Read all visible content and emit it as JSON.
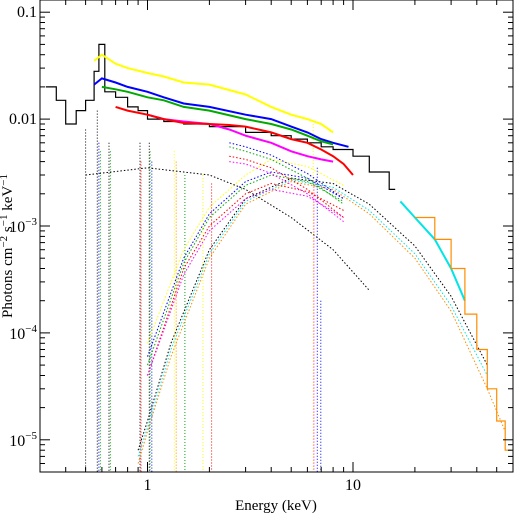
{
  "chart_data": {
    "type": "line",
    "xlabel": "Energy (keV)",
    "ylabel": "Photons cm−2 s−1 keV−1",
    "xscale": "log",
    "yscale": "log",
    "xlim": [
      0.3,
      60
    ],
    "ylim": [
      5e-06,
      0.13
    ],
    "grid": false,
    "x_ticks": [
      {
        "value": 1,
        "label": "1"
      },
      {
        "value": 10,
        "label": "10"
      }
    ],
    "y_ticks": [
      {
        "value": 0.1,
        "label": "0.1"
      },
      {
        "value": 0.01,
        "label": "0.01"
      },
      {
        "value": 0.001,
        "base": "10",
        "exp": "−3"
      },
      {
        "value": 0.0001,
        "base": "10",
        "exp": "−4"
      },
      {
        "value": 1e-05,
        "base": "10",
        "exp": "−5"
      }
    ],
    "series": [
      {
        "color": "#000000",
        "style": "histogram",
        "x": [
          0.32,
          0.36,
          0.4,
          0.45,
          0.5,
          0.55,
          0.58,
          0.62,
          0.7,
          0.8,
          0.9,
          1.0,
          1.2,
          1.5,
          2.0,
          3.0,
          4.0,
          5.0,
          6.0,
          7.0,
          8.0,
          10.0,
          12.0,
          15.0
        ],
        "y": [
          0.02,
          0.015,
          0.009,
          0.012,
          0.015,
          0.028,
          0.05,
          0.018,
          0.016,
          0.013,
          0.012,
          0.01,
          0.0095,
          0.009,
          0.0085,
          0.0075,
          0.007,
          0.0065,
          0.006,
          0.0055,
          0.0052,
          0.0045,
          0.0032,
          0.0022
        ]
      },
      {
        "color": "#ffff00",
        "style": "line",
        "x": [
          0.55,
          0.6,
          0.7,
          0.8,
          1.0,
          1.2,
          1.5,
          2.0,
          3.0,
          4.0,
          5.0,
          6.0,
          7.0,
          8.0
        ],
        "y": [
          0.035,
          0.04,
          0.033,
          0.03,
          0.027,
          0.025,
          0.022,
          0.021,
          0.017,
          0.013,
          0.011,
          0.01,
          0.009,
          0.0075
        ]
      },
      {
        "color": "#0000ff",
        "style": "line",
        "x": [
          0.55,
          0.6,
          0.7,
          0.8,
          1.0,
          1.2,
          1.5,
          2.0,
          3.0,
          4.0,
          5.0,
          6.0,
          7.0,
          8.0,
          9.5
        ],
        "y": [
          0.021,
          0.024,
          0.022,
          0.02,
          0.018,
          0.016,
          0.014,
          0.013,
          0.011,
          0.01,
          0.0085,
          0.0075,
          0.0065,
          0.006,
          0.0055
        ]
      },
      {
        "color": "#00aa00",
        "style": "line",
        "x": [
          0.6,
          0.7,
          0.8,
          1.0,
          1.2,
          1.5,
          2.0,
          3.0,
          4.0,
          5.0,
          6.0,
          7.0,
          8.0
        ],
        "y": [
          0.02,
          0.019,
          0.018,
          0.016,
          0.015,
          0.013,
          0.012,
          0.01,
          0.009,
          0.008,
          0.007,
          0.0062,
          0.0058
        ]
      },
      {
        "color": "#ff00ff",
        "style": "line",
        "x": [
          1.0,
          1.2,
          1.5,
          2.0,
          2.5,
          3.0,
          4.0,
          5.0,
          6.0,
          7.0,
          8.0
        ],
        "y": [
          0.011,
          0.01,
          0.0095,
          0.009,
          0.008,
          0.007,
          0.006,
          0.005,
          0.0045,
          0.0042,
          0.004
        ]
      },
      {
        "color": "#ff0000",
        "style": "line",
        "x": [
          0.7,
          0.8,
          1.0,
          1.2,
          1.5,
          2.0,
          2.5,
          3.0,
          4.0,
          5.0,
          6.0,
          7.0,
          8.0,
          9.0,
          10.0
        ],
        "y": [
          0.013,
          0.012,
          0.011,
          0.01,
          0.0092,
          0.009,
          0.0088,
          0.0085,
          0.0075,
          0.0065,
          0.006,
          0.0052,
          0.0045,
          0.0038,
          0.003
        ]
      },
      {
        "color": "#00e5e5",
        "style": "line",
        "x": [
          17,
          20,
          25,
          30,
          35
        ],
        "y": [
          0.0017,
          0.0012,
          0.00075,
          0.0004,
          0.0002
        ]
      },
      {
        "color": "#ff8c00",
        "style": "histogram",
        "x": [
          20,
          25,
          30,
          35,
          40,
          45,
          50,
          55
        ],
        "y": [
          0.0012,
          0.00075,
          0.0004,
          0.00015,
          7e-05,
          3e-05,
          1.5e-05,
          8e-06
        ]
      }
    ],
    "model_components": [
      {
        "color": "#000000",
        "x": [
          0.9,
          1.0,
          1.3,
          2.0,
          3.0,
          5.0,
          8.0,
          12.0,
          20.0,
          30.0,
          45.0
        ],
        "y": [
          8e-06,
          1.5e-05,
          8e-05,
          0.0006,
          0.0018,
          0.0028,
          0.0025,
          0.0016,
          0.00065,
          0.00022,
          5e-05
        ]
      },
      {
        "color": "#ff8c00",
        "x": [
          0.9,
          1.0,
          1.3,
          2.0,
          3.0,
          5.0,
          8.0,
          12.0,
          20.0,
          30.0,
          45.0,
          55.0
        ],
        "y": [
          6e-06,
          1.2e-05,
          6e-05,
          0.0005,
          0.0016,
          0.0026,
          0.0022,
          0.0013,
          0.0005,
          0.00016,
          3e-05,
          1.2e-05
        ]
      },
      {
        "color": "#00e5e5",
        "x": [
          0.9,
          1.0,
          1.3,
          2.0,
          3.0,
          5.0,
          8.0,
          12.0,
          20.0,
          30.0,
          45.0
        ],
        "y": [
          7e-06,
          1.3e-05,
          7e-05,
          0.00055,
          0.0017,
          0.0027,
          0.0023,
          0.0014,
          0.00055,
          0.00018,
          4e-05
        ]
      },
      {
        "color": "#ffff00",
        "x": [
          1.0,
          1.5,
          2.0,
          3.0,
          4.0,
          6.0,
          9.0
        ],
        "y": [
          8e-05,
          0.0006,
          0.0015,
          0.003,
          0.0042,
          0.0036,
          0.0024
        ]
      },
      {
        "color": "#0000ff",
        "x": [
          1.0,
          1.5,
          2.0,
          3.0,
          4.0,
          6.0,
          9.0
        ],
        "y": [
          6e-05,
          0.0005,
          0.0013,
          0.0026,
          0.0032,
          0.0028,
          0.0018
        ]
      },
      {
        "color": "#00aa00",
        "x": [
          1.0,
          1.5,
          2.0,
          3.0,
          4.0,
          6.0,
          9.0
        ],
        "y": [
          5e-05,
          0.00045,
          0.0012,
          0.0024,
          0.003,
          0.0026,
          0.0017
        ]
      },
      {
        "color": "#ff0000",
        "x": [
          1.0,
          1.5,
          2.0,
          3.0,
          4.0,
          6.0,
          9.0
        ],
        "y": [
          4e-05,
          0.0004,
          0.001,
          0.002,
          0.0025,
          0.0021,
          0.0014
        ]
      },
      {
        "color": "#ff00ff",
        "x": [
          1.0,
          1.5,
          2.0,
          3.0,
          4.0,
          6.0,
          9.0
        ],
        "y": [
          4e-05,
          0.00035,
          0.0009,
          0.0018,
          0.0022,
          0.0019,
          0.0012
        ]
      },
      {
        "color": "#000000",
        "x": [
          0.5,
          1.0,
          2.0,
          3.0,
          5.0,
          8.0,
          12.0
        ],
        "y": [
          0.003,
          0.0035,
          0.003,
          0.0022,
          0.0012,
          0.0006,
          0.00025
        ]
      },
      {
        "color": "#ff0000",
        "x": [
          2.5,
          3.0,
          4.0,
          6.0,
          9.0
        ],
        "y": [
          0.0045,
          0.0042,
          0.0035,
          0.0022,
          0.0012
        ]
      },
      {
        "color": "#ff00ff",
        "x": [
          2.5,
          3.0,
          4.0,
          6.0,
          9.0
        ],
        "y": [
          0.004,
          0.0038,
          0.0031,
          0.002,
          0.0011
        ]
      },
      {
        "color": "#00aa00",
        "x": [
          2.5,
          3.0,
          4.0,
          6.0,
          9.0
        ],
        "y": [
          0.0055,
          0.005,
          0.0042,
          0.0028,
          0.0016
        ]
      },
      {
        "color": "#0000ff",
        "x": [
          2.5,
          3.0,
          4.0,
          6.0,
          9.0
        ],
        "y": [
          0.006,
          0.0055,
          0.0046,
          0.0031,
          0.0018
        ]
      }
    ],
    "emission_lines": [
      {
        "energy": 0.5,
        "peak": 0.008,
        "color": "#000000"
      },
      {
        "energy": 0.57,
        "peak": 0.012,
        "color": "#000000"
      },
      {
        "energy": 0.58,
        "peak": 0.006,
        "color": "#0000ff"
      },
      {
        "energy": 0.59,
        "peak": 0.005,
        "color": "#00aa00"
      },
      {
        "energy": 0.65,
        "peak": 0.006,
        "color": "#000000"
      },
      {
        "energy": 0.66,
        "peak": 0.005,
        "color": "#00aa00"
      },
      {
        "energy": 0.92,
        "peak": 0.006,
        "color": "#000000"
      },
      {
        "energy": 0.93,
        "peak": 0.004,
        "color": "#ff0000"
      },
      {
        "energy": 1.02,
        "peak": 0.006,
        "color": "#000000"
      },
      {
        "energy": 1.03,
        "peak": 0.005,
        "color": "#00aa00"
      },
      {
        "energy": 1.05,
        "peak": 0.004,
        "color": "#0000ff"
      },
      {
        "energy": 1.35,
        "peak": 0.005,
        "color": "#ffff00"
      },
      {
        "energy": 1.38,
        "peak": 0.004,
        "color": "#ff8c00"
      },
      {
        "energy": 1.52,
        "peak": 0.003,
        "color": "#00aa00"
      },
      {
        "energy": 1.86,
        "peak": 0.003,
        "color": "#ffff00"
      },
      {
        "energy": 2.05,
        "peak": 0.0025,
        "color": "#ff0000"
      },
      {
        "energy": 6.4,
        "peak": 0.009,
        "color": "#ffff00"
      },
      {
        "energy": 6.45,
        "peak": 0.0025,
        "color": "#ff00ff"
      },
      {
        "energy": 6.7,
        "peak": 0.0035,
        "color": "#0000ff"
      },
      {
        "energy": 6.97,
        "peak": 0.0002,
        "color": "#0000ff"
      }
    ]
  }
}
